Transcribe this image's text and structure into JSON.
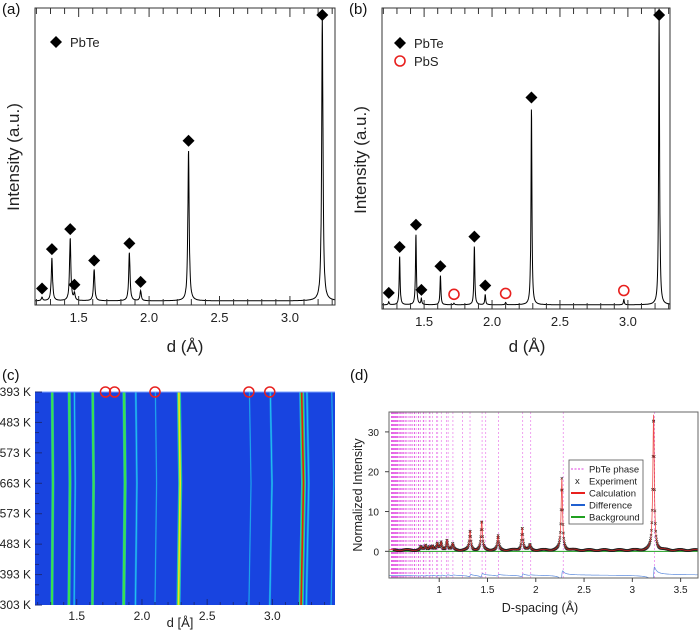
{
  "chart_data": [
    {
      "panel_label": "(a)",
      "type": "line",
      "xlabel": "d (Å)",
      "ylabel": "Intensity (a.u.)",
      "xlim": [
        1.19,
        3.32
      ],
      "xticks": [
        1.5,
        2.0,
        2.5,
        3.0
      ],
      "xtick_labels": [
        "1.5",
        "2.0",
        "2.5",
        "3.0"
      ],
      "legend": [
        {
          "label": "PbTe",
          "marker": "filled-diamond",
          "color": "#000000"
        }
      ],
      "legend_placement": "top-left",
      "line_color": "#000000",
      "peaks": [
        {
          "d": 1.24,
          "intensity": 0.012,
          "phase": "PbTe"
        },
        {
          "d": 1.31,
          "intensity": 0.15,
          "phase": "PbTe"
        },
        {
          "d": 1.44,
          "intensity": 0.22,
          "phase": "PbTe"
        },
        {
          "d": 1.47,
          "intensity": 0.025,
          "phase": "PbTe"
        },
        {
          "d": 1.61,
          "intensity": 0.11,
          "phase": "PbTe"
        },
        {
          "d": 1.86,
          "intensity": 0.17,
          "phase": "PbTe"
        },
        {
          "d": 1.94,
          "intensity": 0.035,
          "phase": "PbTe"
        },
        {
          "d": 2.28,
          "intensity": 0.53,
          "phase": "PbTe"
        },
        {
          "d": 3.23,
          "intensity": 1.0,
          "phase": "PbTe"
        }
      ]
    },
    {
      "panel_label": "(b)",
      "type": "line",
      "xlabel": "d (Å)",
      "ylabel": "Intensity (a.u.)",
      "xlim": [
        1.19,
        3.31
      ],
      "xticks": [
        1.5,
        2.0,
        2.5,
        3.0
      ],
      "xtick_labels": [
        "1.5",
        "2.0",
        "2.5",
        "3.0"
      ],
      "legend": [
        {
          "label": "PbTe",
          "marker": "filled-diamond",
          "color": "#000000"
        },
        {
          "label": "PbS",
          "marker": "open-circle",
          "color": "#e8201e"
        }
      ],
      "legend_placement": "top-left",
      "line_color": "#000000",
      "peaks": [
        {
          "d": 1.24,
          "intensity": 0.01,
          "phase": "PbTe"
        },
        {
          "d": 1.32,
          "intensity": 0.165,
          "phase": "PbTe"
        },
        {
          "d": 1.44,
          "intensity": 0.24,
          "phase": "PbTe"
        },
        {
          "d": 1.48,
          "intensity": 0.02,
          "phase": "PbTe"
        },
        {
          "d": 1.62,
          "intensity": 0.1,
          "phase": "PbTe"
        },
        {
          "d": 1.72,
          "intensity": 0.005,
          "phase": "PbS"
        },
        {
          "d": 1.87,
          "intensity": 0.2,
          "phase": "PbTe"
        },
        {
          "d": 1.95,
          "intensity": 0.035,
          "phase": "PbTe"
        },
        {
          "d": 2.1,
          "intensity": 0.008,
          "phase": "PbS"
        },
        {
          "d": 2.29,
          "intensity": 0.67,
          "phase": "PbTe"
        },
        {
          "d": 2.97,
          "intensity": 0.018,
          "phase": "PbS"
        },
        {
          "d": 3.23,
          "intensity": 1.0,
          "phase": "PbTe"
        }
      ]
    },
    {
      "panel_label": "(c)",
      "type": "heatmap",
      "xlabel": "d [Å]",
      "xlim": [
        1.18,
        3.48
      ],
      "xticks": [
        1.5,
        2.0,
        2.5,
        3.0
      ],
      "xtick_labels": [
        "1.5",
        "2.0",
        "2.5",
        "3.0"
      ],
      "ylabels": [
        "393 K",
        "483 K",
        "573 K",
        "663 K",
        "573 K",
        "483 K",
        "393 K",
        "303 K"
      ],
      "temperatures_K": [
        393,
        483,
        573,
        663,
        573,
        483,
        393,
        303
      ],
      "colormap": [
        "#1844e0",
        "#20c8f0",
        "#38e050",
        "#f0e020",
        "#e02010"
      ],
      "lines": [
        {
          "d": 1.31,
          "intensity": 0.5
        },
        {
          "d": 1.44,
          "intensity": 0.55
        },
        {
          "d": 1.48,
          "intensity": 0.25
        },
        {
          "d": 1.62,
          "intensity": 0.5
        },
        {
          "d": 1.86,
          "intensity": 0.6
        },
        {
          "d": 1.95,
          "intensity": 0.3
        },
        {
          "d": 2.1,
          "intensity": 0.12
        },
        {
          "d": 2.28,
          "intensity": 0.8
        },
        {
          "d": 2.82,
          "intensity": 0.1
        },
        {
          "d": 2.98,
          "intensity": 0.28
        },
        {
          "d": 3.22,
          "intensity": 1.0
        },
        {
          "d": 3.26,
          "intensity": 0.35
        },
        {
          "d": 3.45,
          "intensity": 0.12
        }
      ],
      "pbs_markers_d": [
        1.72,
        1.79,
        2.1,
        2.82,
        2.98
      ],
      "pbs_marker_color": "#e8201e"
    },
    {
      "panel_label": "(d)",
      "type": "line",
      "xlabel": "D-spacing (Å)",
      "ylabel": "Normalized Intensity",
      "xlim": [
        0.48,
        3.68
      ],
      "ylim": [
        -6.7,
        35
      ],
      "xticks": [
        1,
        1.5,
        2,
        2.5,
        3,
        3.5
      ],
      "xtick_labels": [
        "1",
        "1.5",
        "2",
        "2.5",
        "3",
        "3.5"
      ],
      "yticks": [
        0,
        10,
        20,
        30
      ],
      "ytick_labels": [
        "0",
        "10",
        "20",
        "30"
      ],
      "legend": [
        {
          "label": "PbTe phase",
          "style": "dashed-line",
          "color": "#e040e0"
        },
        {
          "label": "Experiment",
          "style": "x-marker",
          "color": "#222222",
          "symbol": "x"
        },
        {
          "label": "Calculation",
          "style": "line",
          "color": "#e8201e"
        },
        {
          "label": "Difference",
          "style": "line",
          "color": "#2060d0"
        },
        {
          "label": "Background",
          "style": "line",
          "color": "#20a020"
        }
      ],
      "legend_placement": "center-right",
      "difference_offset": -6,
      "peaks": [
        {
          "d": 0.81,
          "intensity": 0.8
        },
        {
          "d": 0.86,
          "intensity": 1.2
        },
        {
          "d": 0.9,
          "intensity": 0.9
        },
        {
          "d": 0.93,
          "intensity": 1.0
        },
        {
          "d": 0.98,
          "intensity": 1.5
        },
        {
          "d": 1.02,
          "intensity": 2.0
        },
        {
          "d": 1.08,
          "intensity": 2.6
        },
        {
          "d": 1.14,
          "intensity": 1.5
        },
        {
          "d": 1.32,
          "intensity": 4.8
        },
        {
          "d": 1.44,
          "intensity": 7.2
        },
        {
          "d": 1.61,
          "intensity": 3.5
        },
        {
          "d": 1.86,
          "intensity": 5.8
        },
        {
          "d": 1.94,
          "intensity": 1.3
        },
        {
          "d": 2.27,
          "intensity": 18
        },
        {
          "d": 3.22,
          "intensity": 34
        }
      ],
      "phase_tick_d": [
        3.23,
        2.284,
        1.948,
        1.865,
        1.615,
        1.482,
        1.444,
        1.319,
        1.243,
        1.142,
        1.092,
        1.077,
        1.021,
        0.985,
        0.974,
        0.932,
        0.905,
        0.896,
        0.863,
        0.841,
        0.834,
        0.808,
        0.789,
        0.783,
        0.761,
        0.746,
        0.741,
        0.722,
        0.709,
        0.705,
        0.689,
        0.677,
        0.659,
        0.649,
        0.646,
        0.633,
        0.625,
        0.622,
        0.61,
        0.602,
        0.6,
        0.59,
        0.582,
        0.571,
        0.564,
        0.562,
        0.554,
        0.548,
        0.546,
        0.538,
        0.533,
        0.531,
        0.524,
        0.519,
        0.517,
        0.511,
        0.506,
        0.504
      ]
    }
  ]
}
